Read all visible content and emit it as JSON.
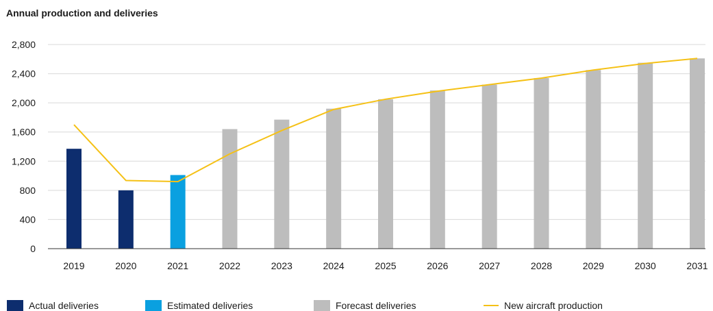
{
  "title": "Annual production and deliveries",
  "colors": {
    "actual": "#0d2d6e",
    "estimated": "#0aa0e0",
    "forecast": "#bdbdbd",
    "production_line": "#f5c116",
    "gridline": "#d9d9d9",
    "axis": "#333333"
  },
  "legend": {
    "actual": "Actual deliveries",
    "estimated": "Estimated deliveries",
    "forecast": "Forecast deliveries",
    "production": "New aircraft production"
  },
  "chart_data": {
    "type": "bar",
    "title": "Annual production and deliveries",
    "xlabel": "",
    "ylabel": "",
    "ylim": [
      0,
      2800
    ],
    "yticks": [
      0,
      400,
      800,
      1200,
      1600,
      2000,
      2400,
      2800
    ],
    "ytick_labels": [
      "0",
      "400",
      "800",
      "1,200",
      "1,600",
      "2,000",
      "2,400",
      "2,800"
    ],
    "grid": true,
    "legend_position": "bottom",
    "categories": [
      "2019",
      "2020",
      "2021",
      "2022",
      "2023",
      "2024",
      "2025",
      "2026",
      "2027",
      "2028",
      "2029",
      "2030",
      "2031"
    ],
    "series": [
      {
        "name": "Actual deliveries",
        "kind": "bar",
        "color_key": "actual",
        "values": [
          1370,
          800,
          null,
          null,
          null,
          null,
          null,
          null,
          null,
          null,
          null,
          null,
          null
        ]
      },
      {
        "name": "Estimated deliveries",
        "kind": "bar",
        "color_key": "estimated",
        "values": [
          null,
          null,
          1010,
          null,
          null,
          null,
          null,
          null,
          null,
          null,
          null,
          null,
          null
        ]
      },
      {
        "name": "Forecast deliveries",
        "kind": "bar",
        "color_key": "forecast",
        "values": [
          null,
          null,
          null,
          1640,
          1770,
          1920,
          2050,
          2170,
          2250,
          2340,
          2450,
          2550,
          2610
        ]
      },
      {
        "name": "New aircraft production",
        "kind": "line",
        "color_key": "production_line",
        "values": [
          1700,
          935,
          920,
          1300,
          1620,
          1910,
          2050,
          2160,
          2250,
          2340,
          2450,
          2540,
          2610
        ]
      }
    ]
  }
}
